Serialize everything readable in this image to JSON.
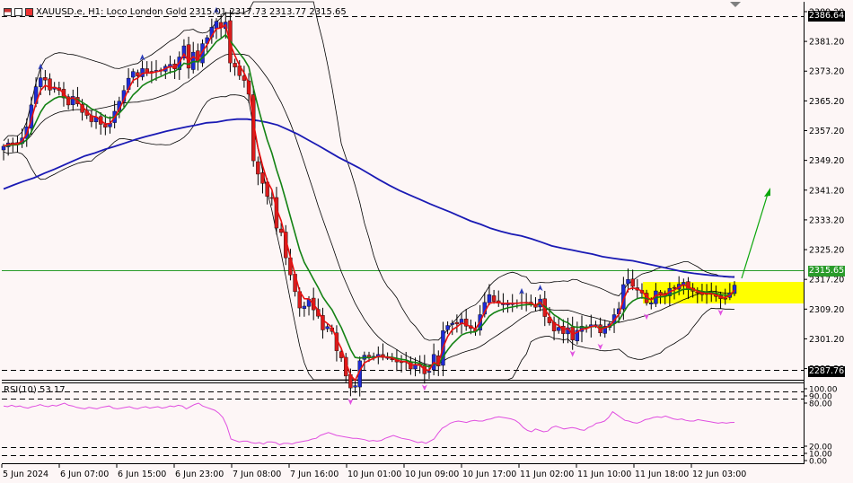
{
  "header": {
    "symbol": "XAUUSD.e",
    "timeframe": "H1",
    "description": "Loco London Gold",
    "ohlc": "2315.01 2317.73 2313.77 2315.65",
    "full": "XAUUSD.e, H1:  Loco London Gold  2315.01 2317.73 2313.77 2315.65"
  },
  "rsi_header": "RSI(10) 53.17",
  "tags": {
    "top_level": "2386.64",
    "current_price": "2315.65",
    "bottom_level": "2287.76"
  },
  "colors": {
    "background": "#fdf6f6",
    "bull_candle": "#1e2bd6",
    "bear_candle": "#d91c1c",
    "ma_fast": "#e81010",
    "ma_slow": "#148214",
    "ma_long": "#1a1ab4",
    "bollinger": "#000000",
    "rsi_line": "#e04fe0",
    "current_price_line": "#2a9b2a",
    "zone": "#ffff00",
    "arrow": "#0aa60a",
    "buy_marker": "#2a3bb8",
    "sell_marker": "#e050e0"
  },
  "chart_data": [
    {
      "type": "candlestick",
      "title": "XAUUSD.e, H1",
      "y_ticks": [
        "2389.20",
        "2381.20",
        "2373.20",
        "2365.20",
        "2357.20",
        "2349.20",
        "2341.20",
        "2333.20",
        "2325.20",
        "2317.20",
        "2309.20",
        "2301.20",
        "2293.20"
      ],
      "x_ticks": [
        "5 Jun 2024",
        "6 Jun 07:00",
        "6 Jun 15:00",
        "6 Jun 23:00",
        "7 Jun 08:00",
        "7 Jun 16:00",
        "10 Jun 01:00",
        "10 Jun 09:00",
        "10 Jun 17:00",
        "11 Jun 02:00",
        "11 Jun 10:00",
        "11 Jun 18:00",
        "12 Jun 03:00"
      ],
      "ylim": [
        2290.2,
        2390.4
      ],
      "horizontal_lines": [
        2386.64,
        2315.65,
        2287.76
      ],
      "zone": [
        2306.2,
        2312.2
      ],
      "close": [
        2353.0,
        2353.9,
        2353.8,
        2353.6,
        2355.2,
        2358.2,
        2364.1,
        2369.0,
        2371.4,
        2370.8,
        2368.1,
        2368.9,
        2368.0,
        2366.0,
        2364.1,
        2366.4,
        2364.4,
        2362.1,
        2361.3,
        2359.6,
        2360.9,
        2358.9,
        2358.1,
        2359.2,
        2362.4,
        2365.1,
        2368.0,
        2371.3,
        2373.1,
        2371.9,
        2373.9,
        2372.8,
        2372.7,
        2373.4,
        2373.5,
        2374.5,
        2375.0,
        2373.8,
        2377.0,
        2380.0,
        2374.0,
        2378.3,
        2375.6,
        2380.6,
        2382.2,
        2385.0,
        2386.6,
        2385.0,
        2386.4,
        2375.4,
        2374.3,
        2372.0,
        2370.7,
        2367.0,
        2349.1,
        2345.5,
        2343.0,
        2339.5,
        2339.0,
        2331.0,
        2329.8,
        2323.0,
        2318.4,
        2313.9,
        2309.5,
        2310.0,
        2311.9,
        2309.0,
        2307.3,
        2303.6,
        2304.5,
        2303.2,
        2298.0,
        2296.1,
        2291.2,
        2288.0,
        2288.6,
        2295.3,
        2296.8,
        2296.1,
        2296.5,
        2297.0,
        2296.2,
        2296.2,
        2295.8,
        2295.0,
        2294.8,
        2295.0,
        2293.1,
        2294.4,
        2294.0,
        2291.8,
        2292.5,
        2297.0,
        2293.9,
        2303.4,
        2304.8,
        2305.4,
        2305.2,
        2306.5,
        2304.6,
        2304.0,
        2303.2,
        2307.7,
        2311.0,
        2313.1,
        2311.3,
        2310.8,
        2310.6,
        2310.8,
        2310.7,
        2310.8,
        2311.0,
        2310.9,
        2310.7,
        2309.7,
        2311.9,
        2307.2,
        2305.5,
        2303.3,
        2304.3,
        2302.6,
        2304.2,
        2300.9,
        2303.5,
        2304.6,
        2304.1,
        2305.0,
        2305.0,
        2302.8,
        2304.6,
        2305.2,
        2307.7,
        2309.3,
        2315.8,
        2317.2,
        2315.3,
        2314.3,
        2313.5,
        2310.9,
        2310.9,
        2314.1,
        2313.2,
        2312.9,
        2314.8,
        2314.8,
        2315.9,
        2316.4,
        2314.6,
        2314.0,
        2313.5,
        2313.1,
        2313.2,
        2313.4,
        2312.6,
        2312.0,
        2312.1,
        2313.6,
        2315.65
      ],
      "ma_long": [
        2341.5,
        2342.6,
        2343.6,
        2344.5,
        2345.7,
        2346.8,
        2348.0,
        2349.2,
        2350.4,
        2351.2,
        2352.2,
        2353.0,
        2353.9,
        2354.8,
        2355.6,
        2356.3,
        2357.0,
        2357.6,
        2358.2,
        2358.7,
        2359.3,
        2359.5,
        2360.0,
        2360.3,
        2360.3,
        2359.9,
        2359.4,
        2358.7,
        2357.5,
        2356.2,
        2354.7,
        2353.2,
        2351.6,
        2350.0,
        2348.6,
        2347.2,
        2345.6,
        2344.0,
        2342.5,
        2341.1,
        2339.9,
        2338.7,
        2337.5,
        2336.4,
        2335.3,
        2334.1,
        2332.9,
        2332.0,
        2330.9,
        2330.1,
        2329.4,
        2328.9,
        2328.1,
        2327.2,
        2326.2,
        2325.6,
        2325.1,
        2324.5,
        2324.0,
        2323.3,
        2322.9,
        2322.5,
        2322.2,
        2321.6,
        2321.0,
        2320.4,
        2319.8,
        2319.2,
        2318.8,
        2318.5,
        2318.2,
        2318.0,
        2317.8
      ]
    },
    {
      "type": "line",
      "title": "RSI(10) 53.17",
      "ylim": [
        0,
        100
      ],
      "levels": [
        80,
        20
      ],
      "y_ticks": [
        "100.00",
        "90.00",
        "80.00",
        "20.00",
        "10.00",
        "0.00"
      ],
      "values": [
        76,
        75,
        77,
        75,
        76,
        74,
        73,
        75,
        76,
        78,
        76,
        75,
        77,
        76,
        78,
        80,
        77,
        76,
        74,
        73,
        72,
        74,
        73,
        72,
        74,
        75,
        76,
        73,
        72,
        73,
        74,
        75,
        73,
        72,
        74,
        75,
        73,
        74,
        75,
        73,
        74,
        76,
        75,
        77,
        76,
        72,
        75,
        78,
        80,
        76,
        74,
        72,
        70,
        66,
        60,
        48,
        30,
        28,
        26,
        27,
        27,
        25,
        24,
        25,
        23,
        26,
        26,
        25,
        22,
        24,
        24,
        23,
        25,
        26,
        27,
        28,
        30,
        31,
        35,
        37,
        39,
        37,
        35,
        34,
        33,
        32,
        31,
        31,
        30,
        29,
        27,
        28,
        27,
        28,
        31,
        33,
        35,
        33,
        31,
        30,
        29,
        27,
        25,
        26,
        24,
        27,
        30,
        38,
        45,
        48,
        52,
        54,
        55,
        54,
        53,
        55,
        56,
        55,
        55,
        57,
        58,
        60,
        61,
        60,
        59,
        58,
        56,
        52,
        46,
        42,
        40,
        44,
        42,
        40,
        41,
        46,
        48,
        46,
        44,
        45,
        46,
        45,
        43,
        42,
        46,
        48,
        52,
        53,
        55,
        60,
        68,
        64,
        60,
        56,
        55,
        53,
        52,
        54,
        57,
        58,
        60,
        61,
        60,
        62,
        60,
        58,
        57,
        58,
        56,
        55,
        55,
        57,
        56,
        55,
        54,
        53,
        52,
        53,
        52,
        53,
        53.17
      ]
    }
  ]
}
